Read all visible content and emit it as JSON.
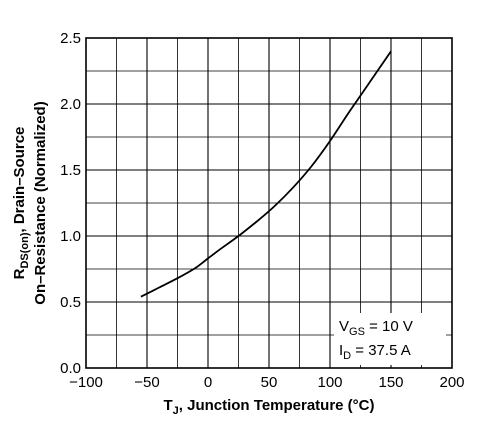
{
  "chart_data": {
    "type": "line",
    "xlabel": {
      "main": "T",
      "sub": "J",
      "rest": ", Junction Temperature (°C)"
    },
    "ylabel": {
      "line1": {
        "main": "R",
        "sub": "DS(on)",
        "rest": ", Drain–Source"
      },
      "line2": "On–Resistance (Normalized)"
    },
    "xlim": [
      -100,
      200
    ],
    "ylim": [
      0.0,
      2.5
    ],
    "x_ticks": [
      "−100",
      "−50",
      "0",
      "50",
      "100",
      "150",
      "200"
    ],
    "x_tick_values": [
      -100,
      -50,
      0,
      50,
      100,
      150,
      200
    ],
    "y_ticks": [
      "0.0",
      "0.5",
      "1.0",
      "1.5",
      "2.0",
      "2.5"
    ],
    "y_tick_values": [
      0.0,
      0.5,
      1.0,
      1.5,
      2.0,
      2.5
    ],
    "grid": true,
    "minor_divisions": {
      "x": 2,
      "y": 2
    },
    "series": [
      {
        "x": [
          -55,
          -40,
          -25,
          -10,
          0,
          10,
          25,
          40,
          55,
          70,
          85,
          100,
          115,
          130,
          150
        ],
        "y": [
          0.54,
          0.61,
          0.68,
          0.76,
          0.83,
          0.9,
          1.0,
          1.11,
          1.23,
          1.37,
          1.53,
          1.72,
          1.93,
          2.13,
          2.4
        ]
      }
    ],
    "annotation": {
      "line1": {
        "main": "V",
        "sub": "GS",
        "rest": " = 10 V"
      },
      "line2": {
        "main": "I",
        "sub": "D",
        "rest": " = 37.5 A"
      },
      "position": "bottom-right"
    }
  }
}
